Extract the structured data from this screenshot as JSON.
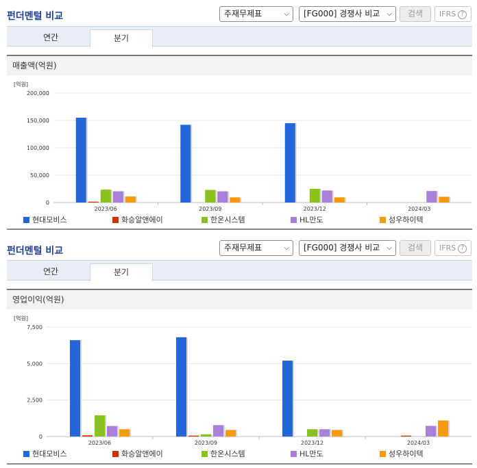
{
  "colors": {
    "현대모비스": "#2466d8",
    "화승알앤에이": "#cc3300",
    "한온시스템": "#88c21a",
    "HL만도": "#a97fd8",
    "성우하이텍": "#f59a0f"
  },
  "sections": [
    {
      "title": "펀더멘털 비교",
      "select1": "주재무제표",
      "select2": "[FG000] 경쟁사 비교",
      "search_label": "검색",
      "ifrs_label": "IFRS",
      "help_glyph": "?",
      "tabs": [
        {
          "label": "연간",
          "active": false
        },
        {
          "label": "분기",
          "active": true
        }
      ],
      "panel_title": "매출액(억원)",
      "chart_data": {
        "type": "bar",
        "unit_label": "[억원]",
        "ylim": [
          0,
          200000
        ],
        "y_ticks": [
          "0",
          "50,000",
          "100,000",
          "150,000",
          "200,000"
        ],
        "y_tick_values": [
          0,
          50000,
          100000,
          150000,
          200000
        ],
        "grid": true,
        "legend": "bottom",
        "categories": [
          "2023/06",
          "2023/09",
          "2023/12",
          "2024/03"
        ],
        "series": [
          {
            "name": "현대모비스",
            "values": [
              155000,
              142000,
              145000,
              0
            ]
          },
          {
            "name": "화승알앤에이",
            "values": [
              1500,
              0,
              0,
              0
            ]
          },
          {
            "name": "한온시스템",
            "values": [
              23500,
              23000,
              25000,
              0
            ]
          },
          {
            "name": "HL만도",
            "values": [
              20500,
              20500,
              22000,
              21000
            ]
          },
          {
            "name": "성우하이텍",
            "values": [
              11000,
              9500,
              9500,
              10500
            ]
          }
        ]
      }
    },
    {
      "title": "펀더멘털 비교",
      "select1": "주재무제표",
      "select2": "[FG000] 경쟁사 비교",
      "search_label": "검색",
      "ifrs_label": "IFRS",
      "help_glyph": "?",
      "tabs": [
        {
          "label": "연간",
          "active": false
        },
        {
          "label": "분기",
          "active": true
        }
      ],
      "panel_title": "영업이익(억원)",
      "chart_data": {
        "type": "bar",
        "unit_label": "[억원]",
        "ylim": [
          0,
          7500
        ],
        "y_ticks": [
          "0",
          "2,500",
          "5,000",
          "7,500"
        ],
        "y_tick_values": [
          0,
          2500,
          5000,
          7500
        ],
        "grid": true,
        "legend": "bottom",
        "categories": [
          "2023/06",
          "2023/09",
          "2023/12",
          "2024/03"
        ],
        "series": [
          {
            "name": "현대모비스",
            "values": [
              6600,
              6800,
              5200,
              0
            ]
          },
          {
            "name": "화승알앤에이",
            "values": [
              80,
              60,
              0,
              60
            ]
          },
          {
            "name": "한온시스템",
            "values": [
              1450,
              150,
              500,
              0
            ]
          },
          {
            "name": "HL만도",
            "values": [
              720,
              780,
              500,
              730
            ]
          },
          {
            "name": "성우하이텍",
            "values": [
              500,
              450,
              450,
              1100
            ]
          }
        ]
      }
    }
  ]
}
